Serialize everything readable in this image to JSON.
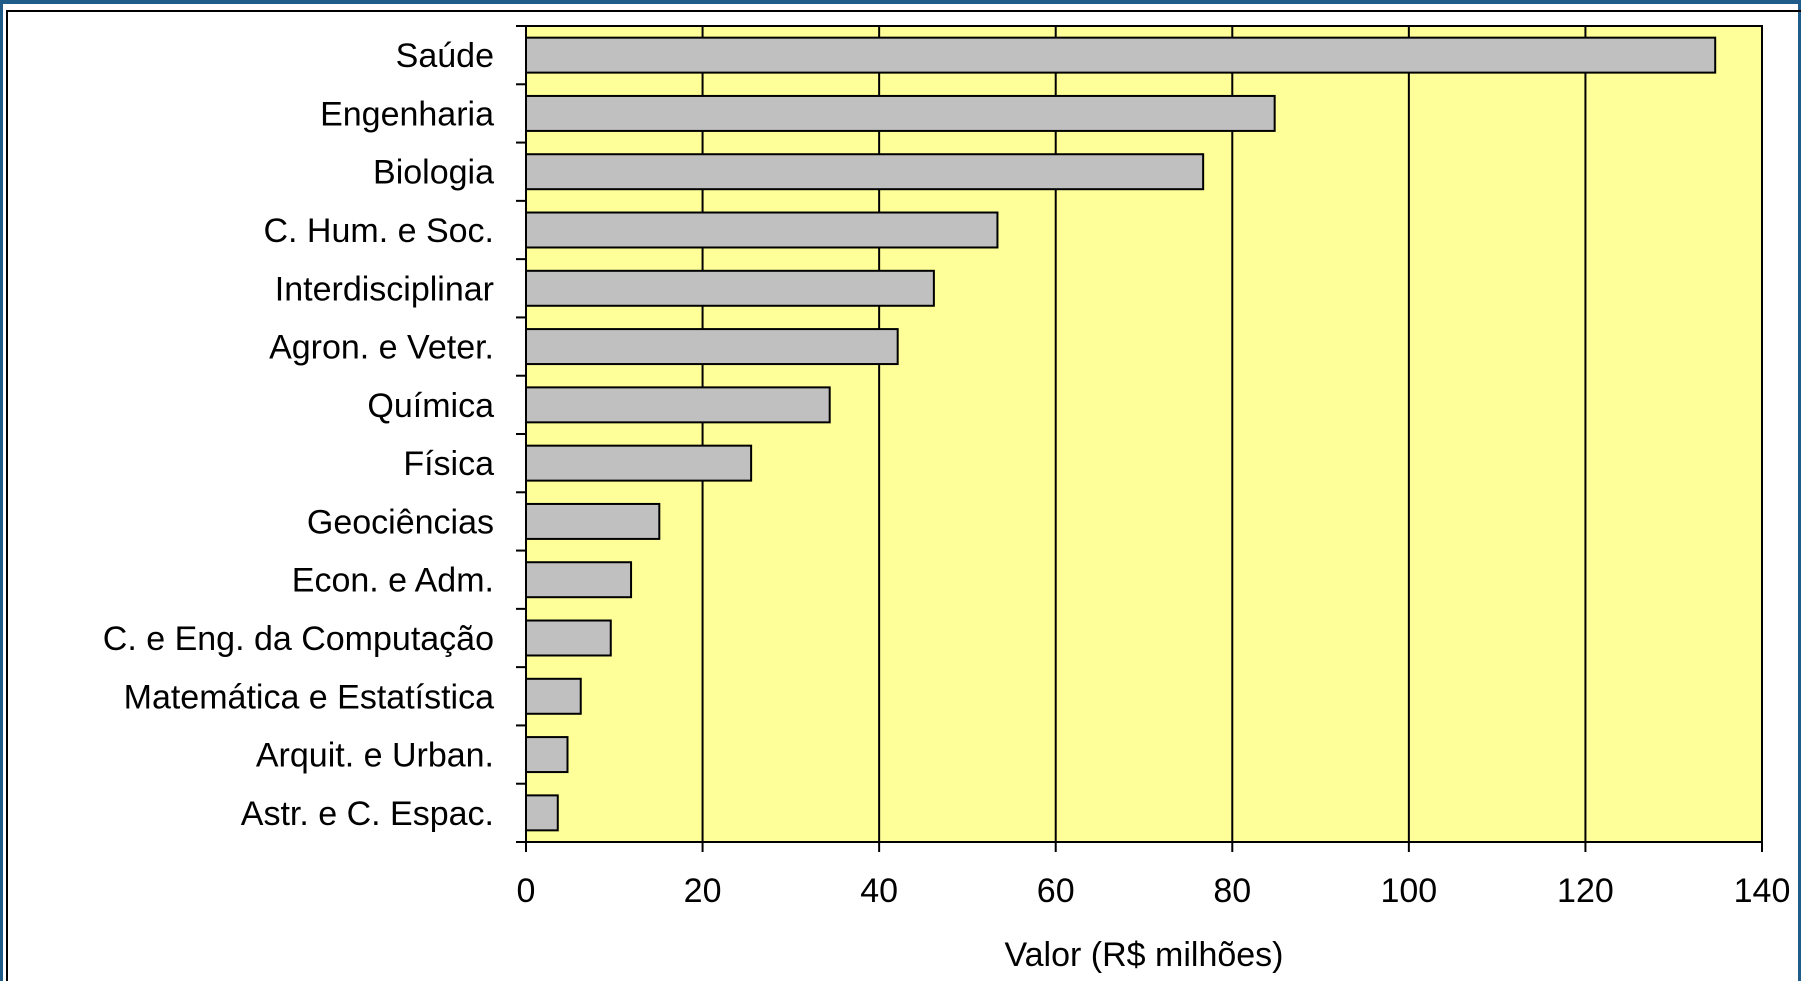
{
  "chart_data": {
    "type": "bar",
    "orientation": "horizontal",
    "categories": [
      "Saúde",
      "Engenharia",
      "Biologia",
      "C. Hum. e Soc.",
      "Interdisciplinar",
      "Agron. e Veter.",
      "Química",
      "Física",
      "Geociências",
      "Econ. e Adm.",
      "C. e Eng. da Computação",
      "Matemática e Estatística",
      "Arquit. e Urban.",
      "Astr. e C. Espac."
    ],
    "values": [
      134.7,
      84.8,
      76.7,
      53.4,
      46.2,
      42.1,
      34.4,
      25.5,
      15.1,
      11.9,
      9.6,
      6.2,
      4.7,
      3.6
    ],
    "xlabel": "Valor (R$ milhões)",
    "ylabel": "",
    "title": "",
    "xlim": [
      0,
      140
    ],
    "xticks": [
      "0",
      "20",
      "40",
      "60",
      "80",
      "100",
      "120",
      "140"
    ],
    "grid": "vertical",
    "colors": {
      "plot_background": "#FFFF99",
      "bar_fill": "#C0C0C0",
      "bar_stroke": "#000000",
      "frame": "#1F5C8A"
    }
  }
}
